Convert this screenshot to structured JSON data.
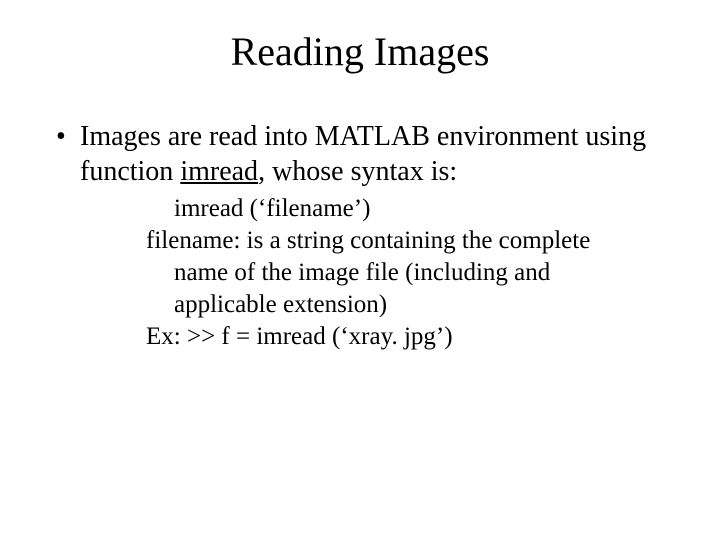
{
  "title": "Reading Images",
  "bullet": {
    "dot": "•",
    "part1": "Images are read into MATLAB environment using function ",
    "imread": "imread",
    "part2": ", whose syntax is:"
  },
  "sub": {
    "l1": "imread (‘filename’)",
    "l2a": "filename: is a string containing the complete",
    "l2b": "name of the image file (including and",
    "l2c": "applicable extension)",
    "l3": "Ex: >> f = imread (‘xray. jpg’)"
  },
  "style": {
    "background": "#ffffff",
    "text_color": "#000000",
    "title_fontsize": 40,
    "body_fontsize": 28,
    "sub_fontsize": 25,
    "font_family": "Times New Roman"
  }
}
